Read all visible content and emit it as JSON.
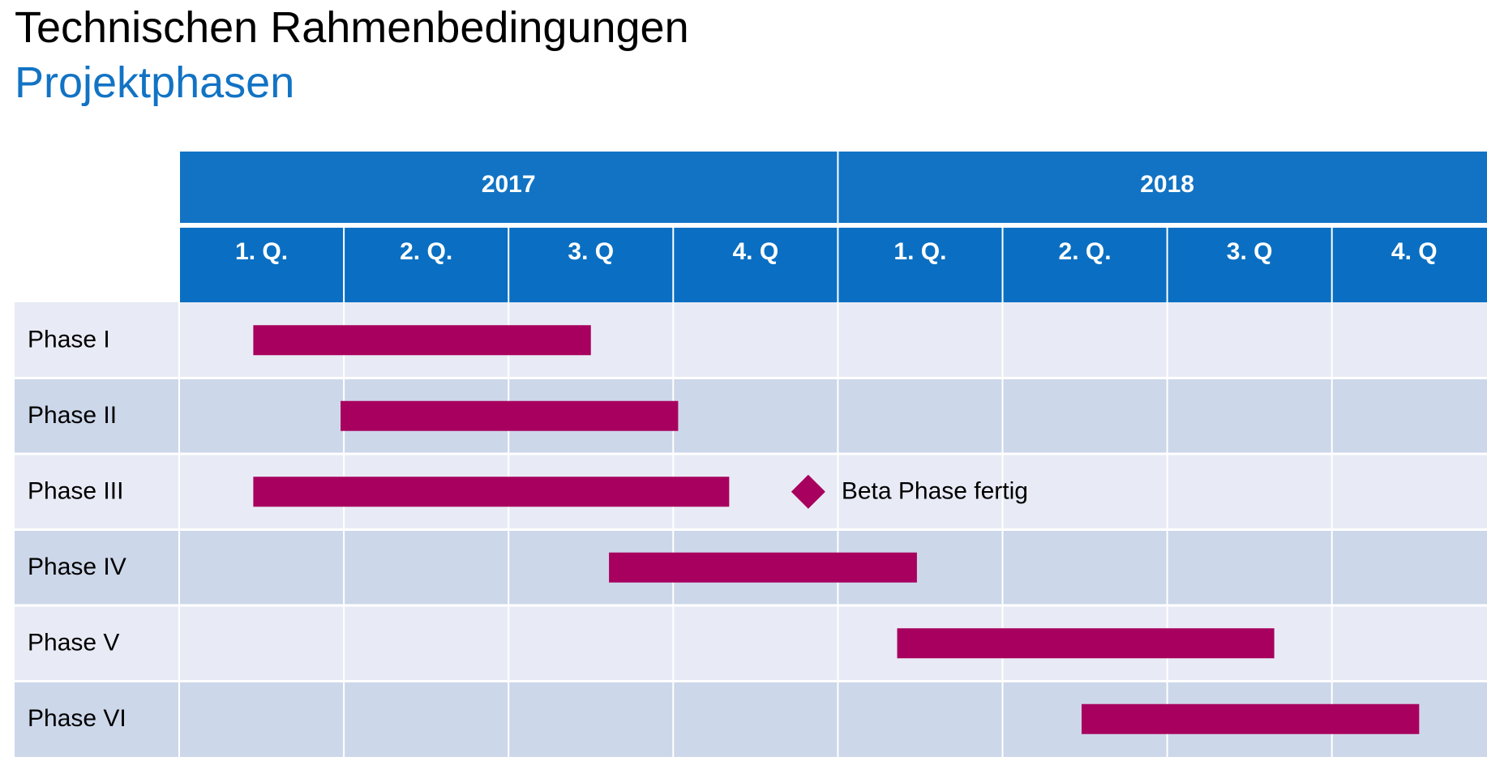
{
  "header": {
    "title": "Technischen Rahmenbedingungen",
    "subtitle": "Projektphasen"
  },
  "colors": {
    "header_blue": "#1273c4",
    "quarter_blue": "#0a6fc2",
    "row_light": "#e8ebf5",
    "row_dark": "#cdd7ea",
    "bar": "#a8005e",
    "subtitle": "#1273c4"
  },
  "chart_data": {
    "type": "gantt",
    "years": [
      "2017",
      "2018"
    ],
    "quarters": [
      "1. Q.",
      "2. Q.",
      "3. Q",
      "4. Q",
      "1. Q.",
      "2. Q.",
      "3. Q",
      "4. Q"
    ],
    "time_unit": "quarters from start of 2017",
    "tasks": [
      {
        "name": "Phase I",
        "start": 0.45,
        "end": 2.5
      },
      {
        "name": "Phase II",
        "start": 0.98,
        "end": 3.03
      },
      {
        "name": "Phase III",
        "start": 0.45,
        "end": 3.34
      },
      {
        "name": "Phase IV",
        "start": 2.61,
        "end": 4.48
      },
      {
        "name": "Phase V",
        "start": 4.36,
        "end": 6.65
      },
      {
        "name": "Phase VI",
        "start": 5.48,
        "end": 7.53
      }
    ],
    "milestones": [
      {
        "label": "Beta Phase fertig",
        "row": 2,
        "at": 3.82
      }
    ]
  }
}
